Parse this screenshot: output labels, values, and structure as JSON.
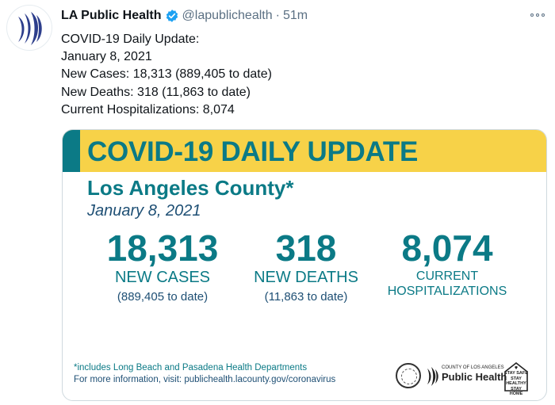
{
  "account": {
    "name": "LA Public Health",
    "handle": "@lapublichealth",
    "separator": "·",
    "time": "51m"
  },
  "tweet": {
    "lines": [
      "COVID-19 Daily Update:",
      "January 8, 2021",
      "New Cases: 18,313 (889,405 to date)",
      "New Deaths: 318 (11,863 to date)",
      "Current Hospitalizations: 8,074"
    ]
  },
  "card": {
    "title": "COVID-19 DAILY UPDATE",
    "county": "Los Angeles County*",
    "date": "January 8, 2021",
    "stats": [
      {
        "value": "18,313",
        "label": "NEW CASES",
        "sub": "(889,405 to date)"
      },
      {
        "value": "318",
        "label": "NEW DEATHS",
        "sub": "(11,863 to date)"
      },
      {
        "value": "8,074",
        "label_line1": "CURRENT",
        "label_line2": "HOSPITALIZATIONS"
      }
    ],
    "footnote": "*includes Long Beach and Pasadena Health Departments",
    "more_info": "For more information, visit: publichealth.lacounty.gov/coronavirus",
    "logo": {
      "small": "COUNTY OF LOS ANGELES",
      "big": "Public Health"
    },
    "stay_safe": [
      "STAY SAFE",
      "STAY HEALTHY",
      "STAY HOME"
    ]
  },
  "colors": {
    "teal": "#0b7a86",
    "yellow": "#f7d248",
    "navy": "#1e4f74",
    "verified": "#1da1f2"
  },
  "icons": [
    "avatar-logo",
    "verified-badge-icon",
    "more-options-icon",
    "county-seal-icon",
    "public-health-logo-icon",
    "stay-home-icon"
  ]
}
